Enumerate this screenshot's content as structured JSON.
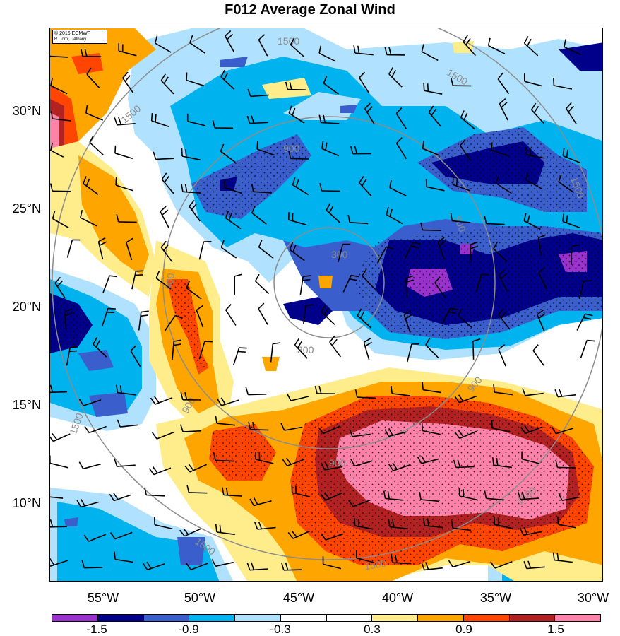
{
  "title": "F012 Average Zonal Wind",
  "credit": {
    "line1": "© 2016 ECMWF",
    "line2": "R. Torn, UAlbany"
  },
  "lat_labels": [
    "30°N",
    "25°N",
    "20°N",
    "15°N",
    "10°N"
  ],
  "lon_labels": [
    "55°W",
    "50°W",
    "45°W",
    "40°W",
    "35°W",
    "30°W"
  ],
  "colorbar": {
    "colors": [
      "#9932CC",
      "#00008B",
      "#3A5FCD",
      "#00B2EE",
      "#B0E2FF",
      "#FFFFFF",
      "#FFFFFF",
      "#FFEC8B",
      "#FFA500",
      "#FF4500",
      "#B22222",
      "#FF82AB"
    ],
    "labels": [
      "-1.5",
      "-0.9",
      "-0.3",
      "0.3",
      "0.9",
      "1.5"
    ]
  },
  "range_rings": [
    "300",
    "900",
    "1500"
  ],
  "colors": {
    "deep_purple": "#9932CC",
    "navy": "#00008B",
    "royal_blue": "#3A5FCD",
    "sky_blue": "#00B2EE",
    "light_blue": "#B0E2FF",
    "light_yellow": "#FFEC8B",
    "orange": "#FFA500",
    "red_orange": "#FF4500",
    "firebrick": "#B22222",
    "pink": "#FF82AB"
  }
}
